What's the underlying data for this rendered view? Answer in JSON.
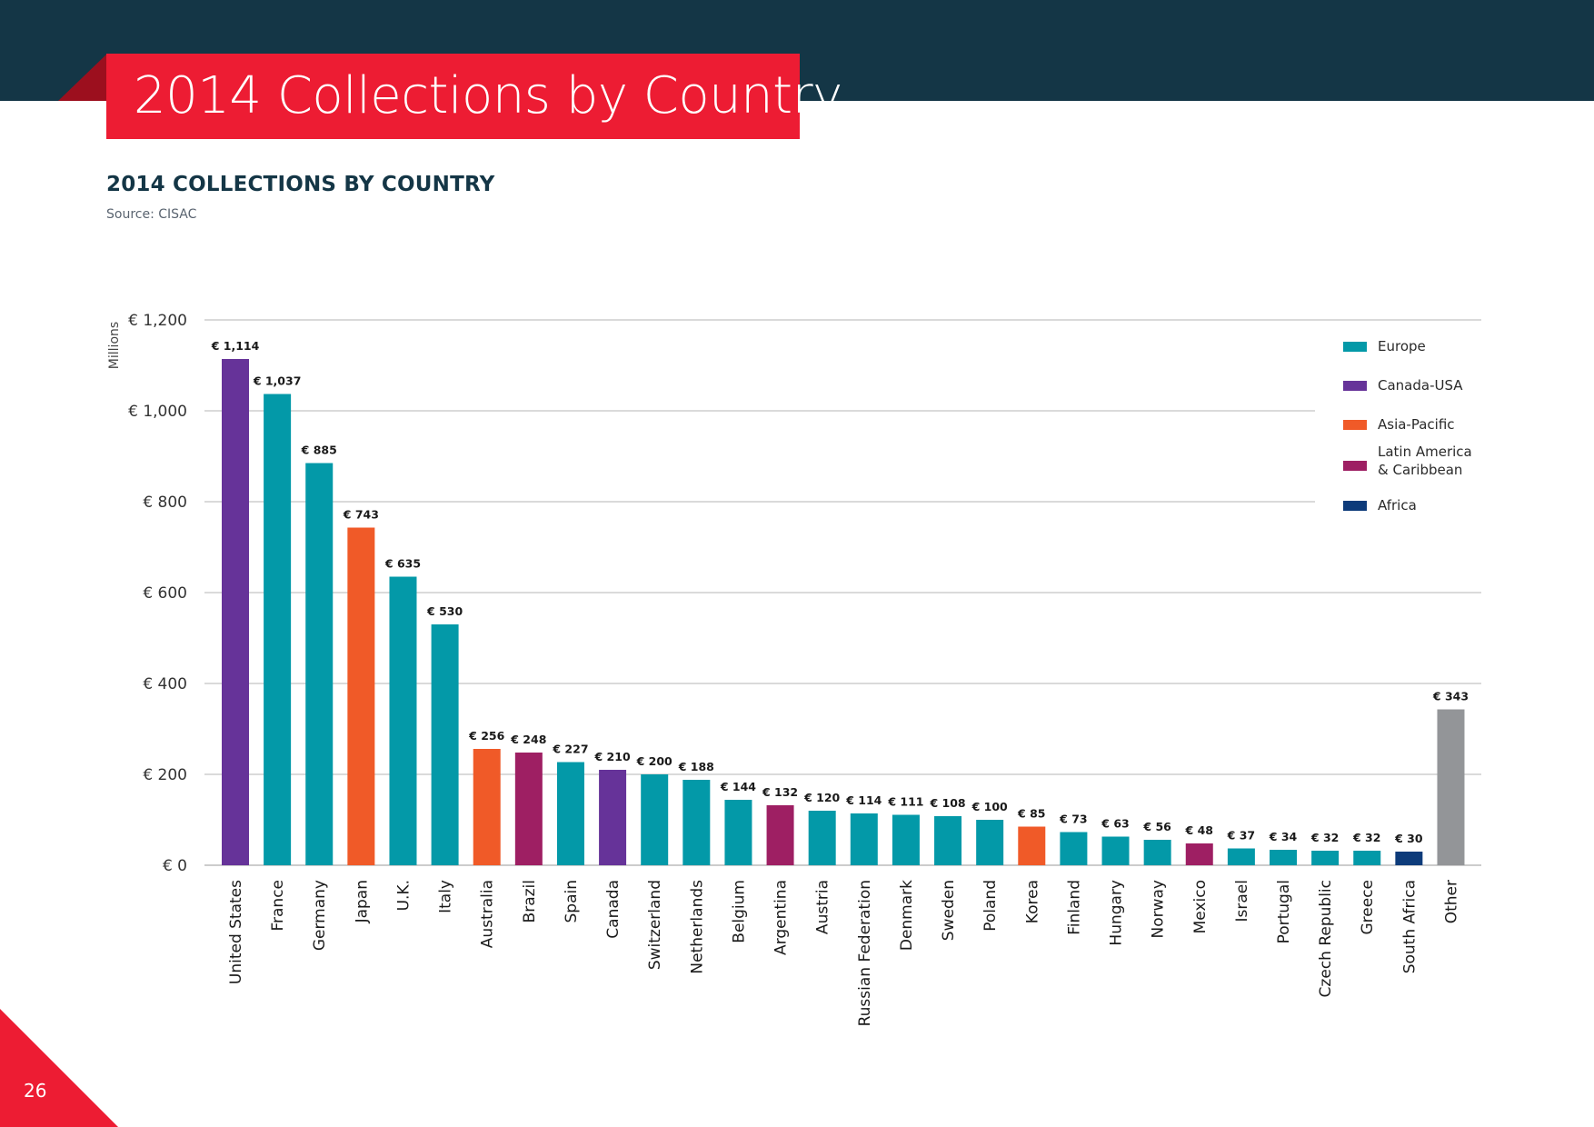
{
  "page": {
    "heading": "2014 Collections by Country",
    "page_number": "26"
  },
  "chart_data": {
    "type": "bar",
    "title": "2014 COLLECTIONS BY COUNTRY",
    "source": "Source: CISAC",
    "ylabel": "Millions",
    "xlabel": "",
    "ylim": [
      0,
      1200
    ],
    "yticks": [
      0,
      200,
      400,
      600,
      800,
      1000,
      1200
    ],
    "ytick_labels": [
      "€ 0",
      "€ 200",
      "€ 400",
      "€ 600",
      "€ 800",
      "€ 1,000",
      "€ 1,200"
    ],
    "grid": true,
    "legend_position": "top-right",
    "legend": [
      {
        "name": "Europe",
        "label": "Europe",
        "color": "#0399a8"
      },
      {
        "name": "Canada-USA",
        "label": "Canada-USA",
        "color": "#663399"
      },
      {
        "name": "Asia-Pacific",
        "label": "Asia-Pacific",
        "color": "#f05a28"
      },
      {
        "name": "Latin America & Caribbean",
        "label": "Latin America\n& Caribbean",
        "color": "#9e1f63"
      },
      {
        "name": "Africa",
        "label": "Africa",
        "color": "#0d3b7a"
      }
    ],
    "other_color": "#939598",
    "categories": [
      "United States",
      "France",
      "Germany",
      "Japan",
      "U.K.",
      "Italy",
      "Australia",
      "Brazil",
      "Spain",
      "Canada",
      "Switzerland",
      "Netherlands",
      "Belgium",
      "Argentina",
      "Austria",
      "Russian Federation",
      "Denmark",
      "Sweden",
      "Poland",
      "Korea",
      "Finland",
      "Hungary",
      "Norway",
      "Mexico",
      "Israel",
      "Portugal",
      "Czech Republic",
      "Greece",
      "South Africa",
      "Other"
    ],
    "values": [
      1114,
      1037,
      885,
      743,
      635,
      530,
      256,
      248,
      227,
      210,
      200,
      188,
      144,
      132,
      120,
      114,
      111,
      108,
      100,
      85,
      73,
      63,
      56,
      48,
      37,
      34,
      32,
      32,
      30,
      343
    ],
    "value_labels": [
      "€ 1,114",
      "€ 1,037",
      "€ 885",
      "€ 743",
      "€ 635",
      "€ 530",
      "€ 256",
      "€ 248",
      "€ 227",
      "€ 210",
      "€ 200",
      "€ 188",
      "€ 144",
      "€ 132",
      "€ 120",
      "€ 114",
      "€ 111",
      "€ 108",
      "€ 100",
      "€ 85",
      "€ 73",
      "€ 63",
      "€ 56",
      "€ 48",
      "€ 37",
      "€ 34",
      "€ 32",
      "€ 32",
      "€ 30",
      "€ 343"
    ],
    "regions": [
      "Canada-USA",
      "Europe",
      "Europe",
      "Asia-Pacific",
      "Europe",
      "Europe",
      "Asia-Pacific",
      "Latin America & Caribbean",
      "Europe",
      "Canada-USA",
      "Europe",
      "Europe",
      "Europe",
      "Latin America & Caribbean",
      "Europe",
      "Europe",
      "Europe",
      "Europe",
      "Europe",
      "Asia-Pacific",
      "Europe",
      "Europe",
      "Europe",
      "Latin America & Caribbean",
      "Europe",
      "Europe",
      "Europe",
      "Europe",
      "Africa",
      "Other"
    ]
  }
}
